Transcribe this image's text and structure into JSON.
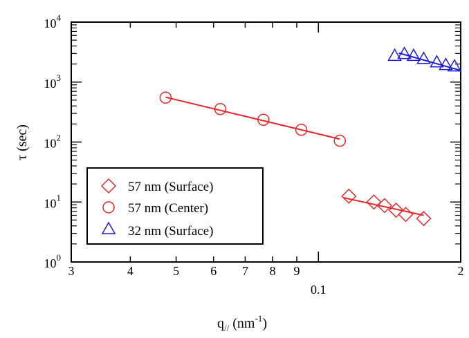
{
  "chart_data": {
    "type": "scatter",
    "title": "",
    "xlabel": {
      "main": "q",
      "sub": "//",
      "unit_prefix": " (nm",
      "unit_sup": "-1",
      "unit_suffix": ")"
    },
    "ylabel": {
      "greek": "τ",
      "rest": " (sec)"
    },
    "x_scale": "log",
    "y_scale": "log",
    "xlim": [
      0.03,
      0.2
    ],
    "ylim": [
      1,
      10000
    ],
    "grid": false,
    "legend_position": "lower-left",
    "x_tick_labels": [
      {
        "value": 0.03,
        "label": "3"
      },
      {
        "value": 0.04,
        "label": "4"
      },
      {
        "value": 0.05,
        "label": "5"
      },
      {
        "value": 0.06,
        "label": "6"
      },
      {
        "value": 0.07,
        "label": "7"
      },
      {
        "value": 0.08,
        "label": "8"
      },
      {
        "value": 0.09,
        "label": "9"
      },
      {
        "value": 0.1,
        "label": "0.1"
      },
      {
        "value": 0.2,
        "label": "2"
      }
    ],
    "y_tick_labels": [
      {
        "value": 1,
        "base": "10",
        "exp": "0"
      },
      {
        "value": 10,
        "base": "10",
        "exp": "1"
      },
      {
        "value": 100,
        "base": "10",
        "exp": "2"
      },
      {
        "value": 1000,
        "base": "10",
        "exp": "3"
      },
      {
        "value": 10000,
        "base": "10",
        "exp": "4"
      }
    ],
    "series": [
      {
        "name": "57 nm (Surface)",
        "marker": "diamond",
        "color": "#e8262a",
        "points": [
          {
            "x": 0.116,
            "y": 12.5
          },
          {
            "x": 0.131,
            "y": 10.0
          },
          {
            "x": 0.138,
            "y": 8.7
          },
          {
            "x": 0.146,
            "y": 7.3
          },
          {
            "x": 0.153,
            "y": 6.2
          },
          {
            "x": 0.167,
            "y": 5.3
          }
        ],
        "fit": [
          {
            "x": 0.113,
            "y": 11.8
          },
          {
            "x": 0.167,
            "y": 6.0
          }
        ]
      },
      {
        "name": "57 nm (Center)",
        "marker": "circle",
        "color": "#e8262a",
        "points": [
          {
            "x": 0.0475,
            "y": 550
          },
          {
            "x": 0.062,
            "y": 355
          },
          {
            "x": 0.0765,
            "y": 235
          },
          {
            "x": 0.092,
            "y": 160
          },
          {
            "x": 0.111,
            "y": 105
          }
        ],
        "fit": [
          {
            "x": 0.0475,
            "y": 560
          },
          {
            "x": 0.111,
            "y": 112
          }
        ]
      },
      {
        "name": "32 nm (Surface)",
        "marker": "triangle",
        "color": "#1c1cd6",
        "points": [
          {
            "x": 0.145,
            "y": 2700
          },
          {
            "x": 0.152,
            "y": 2900
          },
          {
            "x": 0.159,
            "y": 2700
          },
          {
            "x": 0.167,
            "y": 2400
          },
          {
            "x": 0.178,
            "y": 2100
          },
          {
            "x": 0.186,
            "y": 1900
          },
          {
            "x": 0.194,
            "y": 1800
          }
        ],
        "fit": [
          {
            "x": 0.148,
            "y": 3050
          },
          {
            "x": 0.2,
            "y": 1560
          }
        ]
      }
    ]
  }
}
